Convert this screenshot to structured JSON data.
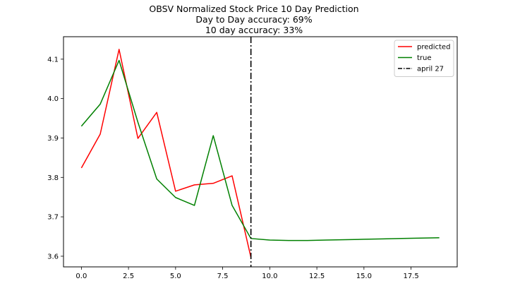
{
  "chart_data": {
    "type": "line",
    "title": "OBSV Normalized Stock Price 10 Day Prediction",
    "subtitle_lines": [
      "Day to Day accuracy: 69%",
      "10 day accuracy: 33%"
    ],
    "xlabel": "",
    "ylabel": "",
    "xlim": [
      -0.95,
      19.95
    ],
    "ylim": [
      3.573,
      4.157
    ],
    "x_ticks": [
      0.0,
      2.5,
      5.0,
      7.5,
      10.0,
      12.5,
      15.0,
      17.5
    ],
    "x_tick_labels": [
      "0.0",
      "2.5",
      "5.0",
      "7.5",
      "10.0",
      "12.5",
      "15.0",
      "17.5"
    ],
    "y_ticks": [
      3.6,
      3.7,
      3.8,
      3.9,
      4.0,
      4.1
    ],
    "y_tick_labels": [
      "3.6",
      "3.7",
      "3.8",
      "3.9",
      "4.0",
      "4.1"
    ],
    "grid": false,
    "legend_position": "top-right",
    "series": [
      {
        "name": "predicted",
        "color": "#ff0000",
        "style": "solid",
        "x": [
          0,
          1,
          2,
          3,
          4,
          5,
          6,
          7,
          8,
          9
        ],
        "values": [
          3.824,
          3.91,
          4.125,
          3.899,
          3.965,
          3.765,
          3.781,
          3.785,
          3.804,
          3.597
        ]
      },
      {
        "name": "true",
        "color": "#008000",
        "style": "solid",
        "x": [
          0,
          1,
          2,
          3,
          4,
          5,
          6,
          7,
          8,
          9,
          10,
          11,
          12,
          13,
          14,
          15,
          16,
          17,
          18,
          19
        ],
        "values": [
          3.93,
          3.986,
          4.097,
          3.94,
          3.796,
          3.749,
          3.729,
          3.906,
          3.729,
          3.645,
          3.641,
          3.64,
          3.64,
          3.641,
          3.642,
          3.643,
          3.644,
          3.645,
          3.646,
          3.647
        ]
      }
    ],
    "vertical_lines": [
      {
        "name": "april 27",
        "x": 9,
        "color": "#000000",
        "style": "dashdot"
      }
    ]
  }
}
